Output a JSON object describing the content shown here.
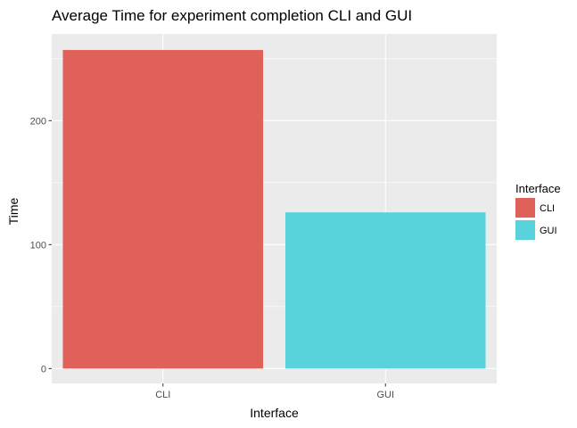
{
  "chart_data": {
    "type": "bar",
    "title": "Average Time for experiment completion CLI and GUI",
    "xlabel": "Interface",
    "ylabel": "Time",
    "categories": [
      "CLI",
      "GUI"
    ],
    "values": [
      257,
      126
    ],
    "colors": [
      "#e0605a",
      "#58d3dc"
    ],
    "ylim": [
      -12,
      270
    ],
    "yticks": [
      0,
      100,
      200
    ],
    "grid": true,
    "legend": {
      "title": "Interface",
      "position": "right",
      "items": [
        "CLI",
        "GUI"
      ]
    },
    "panel_background": "#ebebeb"
  }
}
